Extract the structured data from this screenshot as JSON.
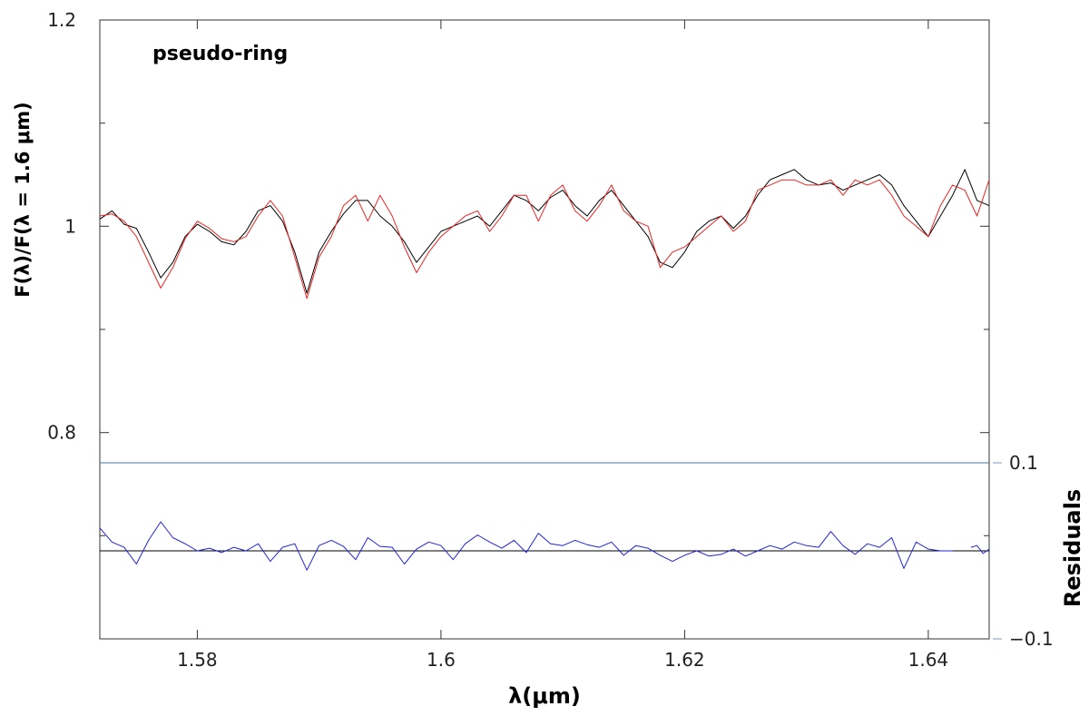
{
  "chart_data": {
    "type": "line",
    "title": "",
    "annotation": "pseudo-ring",
    "xlabel": "λ(μm)",
    "ylabel": "F(λ)/F(λ = 1.6 μm)",
    "y2label": "Residuals",
    "xlim": [
      1.572,
      1.645
    ],
    "ylim": [
      0.6,
      1.2
    ],
    "x_ticks": [
      1.58,
      1.6,
      1.62,
      1.64
    ],
    "x_tick_labels": [
      "1.58",
      "1.6",
      "1.62",
      "1.64"
    ],
    "y_ticks": [
      0.8,
      1.0,
      1.2
    ],
    "y_tick_labels": [
      "0.8",
      "1",
      "1.2"
    ],
    "residual_axis": {
      "ylim": [
        -0.1,
        0.1
      ],
      "zero_value": 0.0,
      "ticks": [
        0.1,
        -0.1
      ],
      "tick_labels": [
        "0.1",
        "−0.1"
      ]
    },
    "colors": {
      "observed": "#000000",
      "model": "#ee2222",
      "residuals": "#2222dd",
      "reference_line": "#4477bb"
    },
    "series": [
      {
        "key": "observed",
        "x": [
          1.572,
          1.573,
          1.574,
          1.575,
          1.576,
          1.577,
          1.578,
          1.579,
          1.58,
          1.581,
          1.582,
          1.583,
          1.584,
          1.585,
          1.586,
          1.587,
          1.588,
          1.589,
          1.59,
          1.591,
          1.592,
          1.593,
          1.594,
          1.595,
          1.596,
          1.597,
          1.598,
          1.599,
          1.6,
          1.601,
          1.602,
          1.603,
          1.604,
          1.605,
          1.606,
          1.607,
          1.608,
          1.609,
          1.61,
          1.611,
          1.612,
          1.613,
          1.614,
          1.615,
          1.616,
          1.617,
          1.618,
          1.619,
          1.62,
          1.621,
          1.622,
          1.623,
          1.624,
          1.625,
          1.626,
          1.627,
          1.628,
          1.629,
          1.63,
          1.631,
          1.632,
          1.633,
          1.634,
          1.635,
          1.636,
          1.637,
          1.638,
          1.639,
          1.64,
          1.641,
          1.642,
          1.643,
          1.644,
          1.645
        ],
        "values": [
          1.007,
          1.015,
          1.002,
          0.998,
          0.975,
          0.95,
          0.965,
          0.99,
          1.002,
          0.995,
          0.985,
          0.982,
          0.995,
          1.015,
          1.02,
          1.005,
          0.975,
          0.935,
          0.975,
          0.995,
          1.012,
          1.025,
          1.025,
          1.01,
          1.0,
          0.985,
          0.965,
          0.98,
          0.995,
          1.0,
          1.005,
          1.01,
          1.0,
          1.015,
          1.03,
          1.025,
          1.015,
          1.028,
          1.035,
          1.02,
          1.01,
          1.025,
          1.035,
          1.02,
          1.005,
          0.99,
          0.965,
          0.96,
          0.975,
          0.995,
          1.005,
          1.01,
          0.998,
          1.01,
          1.03,
          1.045,
          1.05,
          1.055,
          1.045,
          1.04,
          1.042,
          1.035,
          1.04,
          1.045,
          1.05,
          1.04,
          1.02,
          1.005,
          0.99,
          1.01,
          1.03,
          1.055,
          1.025,
          1.02
        ]
      },
      {
        "key": "model",
        "x": [
          1.572,
          1.573,
          1.574,
          1.575,
          1.576,
          1.577,
          1.578,
          1.579,
          1.58,
          1.581,
          1.582,
          1.583,
          1.584,
          1.585,
          1.586,
          1.587,
          1.588,
          1.589,
          1.59,
          1.591,
          1.592,
          1.593,
          1.594,
          1.595,
          1.596,
          1.597,
          1.598,
          1.599,
          1.6,
          1.601,
          1.602,
          1.603,
          1.604,
          1.605,
          1.606,
          1.607,
          1.608,
          1.609,
          1.61,
          1.611,
          1.612,
          1.613,
          1.614,
          1.615,
          1.616,
          1.617,
          1.618,
          1.619,
          1.62,
          1.621,
          1.622,
          1.623,
          1.624,
          1.625,
          1.626,
          1.627,
          1.628,
          1.629,
          1.63,
          1.631,
          1.632,
          1.633,
          1.634,
          1.635,
          1.636,
          1.637,
          1.638,
          1.639,
          1.64,
          1.641,
          1.642,
          1.643,
          1.644,
          1.645
        ],
        "values": [
          1.01,
          1.012,
          1.005,
          0.99,
          0.965,
          0.94,
          0.96,
          0.988,
          1.005,
          0.998,
          0.988,
          0.985,
          0.99,
          1.01,
          1.025,
          1.01,
          0.97,
          0.93,
          0.97,
          0.99,
          1.02,
          1.03,
          1.005,
          1.03,
          1.01,
          0.98,
          0.955,
          0.975,
          0.99,
          1.0,
          1.01,
          1.015,
          0.995,
          1.01,
          1.03,
          1.03,
          1.005,
          1.03,
          1.04,
          1.015,
          1.005,
          1.02,
          1.04,
          1.015,
          1.005,
          1.0,
          0.96,
          0.975,
          0.98,
          0.99,
          1.0,
          1.01,
          0.995,
          1.005,
          1.035,
          1.04,
          1.045,
          1.045,
          1.04,
          1.04,
          1.045,
          1.03,
          1.045,
          1.04,
          1.045,
          1.03,
          1.01,
          1.0,
          0.99,
          1.02,
          1.04,
          1.035,
          1.01,
          1.045
        ]
      },
      {
        "key": "residuals",
        "axis": "residual",
        "x": [
          1.572,
          1.573,
          1.574,
          1.575,
          1.576,
          1.577,
          1.578,
          1.579,
          1.58,
          1.581,
          1.582,
          1.583,
          1.584,
          1.585,
          1.586,
          1.587,
          1.588,
          1.589,
          1.59,
          1.591,
          1.592,
          1.593,
          1.594,
          1.595,
          1.596,
          1.597,
          1.598,
          1.599,
          1.6,
          1.601,
          1.602,
          1.603,
          1.604,
          1.605,
          1.606,
          1.607,
          1.608,
          1.609,
          1.61,
          1.611,
          1.612,
          1.613,
          1.614,
          1.615,
          1.616,
          1.617,
          1.618,
          1.619,
          1.62,
          1.621,
          1.622,
          1.623,
          1.624,
          1.625,
          1.626,
          1.627,
          1.628,
          1.629,
          1.63,
          1.631,
          1.632,
          1.633,
          1.634,
          1.635,
          1.636,
          1.637,
          1.638,
          1.639,
          1.64,
          1.641,
          1.642
        ],
        "values": [
          0.026,
          0.01,
          0.004,
          -0.015,
          0.012,
          0.033,
          0.015,
          0.008,
          0.0,
          0.003,
          -0.002,
          0.004,
          0.0,
          0.008,
          -0.012,
          0.004,
          0.008,
          -0.022,
          0.006,
          0.012,
          0.005,
          -0.01,
          0.015,
          0.005,
          0.004,
          -0.015,
          0.002,
          0.01,
          0.006,
          -0.01,
          0.008,
          0.018,
          0.01,
          0.003,
          0.012,
          -0.002,
          0.02,
          0.008,
          0.006,
          0.012,
          0.007,
          0.004,
          0.01,
          -0.005,
          0.006,
          0.003,
          -0.005,
          -0.012,
          -0.005,
          0.0,
          -0.006,
          -0.004,
          0.002,
          -0.006,
          0.0,
          0.006,
          0.002,
          0.01,
          0.006,
          0.004,
          0.022,
          0.006,
          -0.004,
          0.008,
          0.004,
          0.015,
          -0.02,
          0.01,
          0.002,
          0.0,
          0.0
        ]
      },
      {
        "key": "residuals-tail",
        "axis": "residual",
        "x": [
          1.6435,
          1.644,
          1.6445,
          1.645
        ],
        "values": [
          0.004,
          0.006,
          -0.003,
          0.002
        ]
      }
    ]
  }
}
